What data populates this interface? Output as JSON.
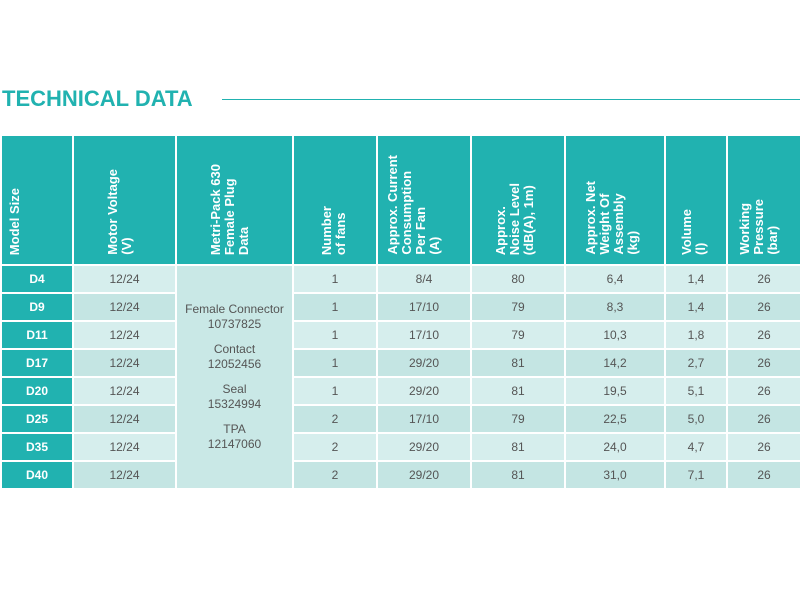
{
  "title": "TECHNICAL DATA",
  "colors": {
    "accent": "#21b2b0",
    "row_light": "#d6eeed",
    "row_dark": "#c4e5e3",
    "text": "#555555"
  },
  "headers": {
    "model": "Model Size",
    "motor": "Motor Voltage\n(V)",
    "plug": "Metri-Pack 630\nFemale Plug\nData",
    "fans": "Number\nof fans",
    "current": "Approx. Current\nConsumption\nPer Fan\n(A)",
    "noise": "Approx.\nNoise Level\n(dB(A), 1m)",
    "weight": "Approx. Net\nWeight Of\nAssembly\n(kg)",
    "volume": "Volume\n(l)",
    "pressure": "Working\nPressure\n(bar)"
  },
  "plug_data": {
    "female_connector_label": "Female Connector",
    "female_connector_value": "10737825",
    "contact_label": "Contact",
    "contact_value": "12052456",
    "seal_label": "Seal",
    "seal_value": "15324994",
    "tpa_label": "TPA",
    "tpa_value": "12147060"
  },
  "rows": [
    {
      "model": "D4",
      "motor": "12/24",
      "fans": "1",
      "current": "8/4",
      "noise": "80",
      "weight": "6,4",
      "volume": "1,4",
      "pressure": "26"
    },
    {
      "model": "D9",
      "motor": "12/24",
      "fans": "1",
      "current": "17/10",
      "noise": "79",
      "weight": "8,3",
      "volume": "1,4",
      "pressure": "26"
    },
    {
      "model": "D11",
      "motor": "12/24",
      "fans": "1",
      "current": "17/10",
      "noise": "79",
      "weight": "10,3",
      "volume": "1,8",
      "pressure": "26"
    },
    {
      "model": "D17",
      "motor": "12/24",
      "fans": "1",
      "current": "29/20",
      "noise": "81",
      "weight": "14,2",
      "volume": "2,7",
      "pressure": "26"
    },
    {
      "model": "D20",
      "motor": "12/24",
      "fans": "1",
      "current": "29/20",
      "noise": "81",
      "weight": "19,5",
      "volume": "5,1",
      "pressure": "26"
    },
    {
      "model": "D25",
      "motor": "12/24",
      "fans": "2",
      "current": "17/10",
      "noise": "79",
      "weight": "22,5",
      "volume": "5,0",
      "pressure": "26"
    },
    {
      "model": "D35",
      "motor": "12/24",
      "fans": "2",
      "current": "29/20",
      "noise": "81",
      "weight": "24,0",
      "volume": "4,7",
      "pressure": "26"
    },
    {
      "model": "D40",
      "motor": "12/24",
      "fans": "2",
      "current": "29/20",
      "noise": "81",
      "weight": "31,0",
      "volume": "7,1",
      "pressure": "26"
    }
  ]
}
